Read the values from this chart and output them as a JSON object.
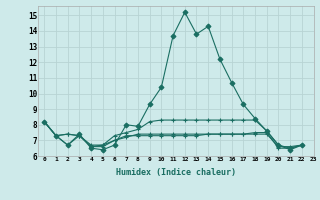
{
  "xlabel": "Humidex (Indice chaleur)",
  "background_color": "#ceeaea",
  "grid_color": "#b8d4d4",
  "line_color": "#1a6e62",
  "xlim": [
    -0.5,
    23
  ],
  "ylim": [
    6,
    15.6
  ],
  "xticks": [
    0,
    1,
    2,
    3,
    4,
    5,
    6,
    7,
    8,
    9,
    10,
    11,
    12,
    13,
    14,
    15,
    16,
    17,
    18,
    19,
    20,
    21,
    22,
    23
  ],
  "yticks": [
    6,
    7,
    8,
    9,
    10,
    11,
    12,
    13,
    14,
    15
  ],
  "series": [
    [
      8.2,
      7.3,
      6.7,
      7.4,
      6.5,
      6.4,
      6.7,
      8.0,
      7.9,
      9.3,
      10.4,
      13.7,
      15.2,
      13.8,
      14.3,
      12.2,
      10.7,
      9.3,
      8.4,
      7.6,
      6.7,
      6.4,
      6.7
    ],
    [
      8.2,
      7.3,
      6.7,
      7.3,
      6.6,
      6.7,
      7.0,
      7.3,
      7.3,
      7.3,
      7.3,
      7.3,
      7.3,
      7.3,
      7.4,
      7.4,
      7.4,
      7.4,
      7.5,
      7.5,
      6.5,
      6.5,
      6.7
    ],
    [
      8.2,
      7.3,
      7.4,
      7.3,
      6.7,
      6.7,
      7.3,
      7.5,
      7.7,
      8.2,
      8.3,
      8.3,
      8.3,
      8.3,
      8.3,
      8.3,
      8.3,
      8.3,
      8.3,
      7.6,
      6.7,
      6.5,
      6.7
    ],
    [
      8.2,
      7.3,
      7.4,
      7.3,
      6.6,
      6.6,
      7.0,
      7.2,
      7.4,
      7.4,
      7.4,
      7.4,
      7.4,
      7.4,
      7.4,
      7.4,
      7.4,
      7.4,
      7.4,
      7.4,
      6.6,
      6.6,
      6.7
    ]
  ]
}
